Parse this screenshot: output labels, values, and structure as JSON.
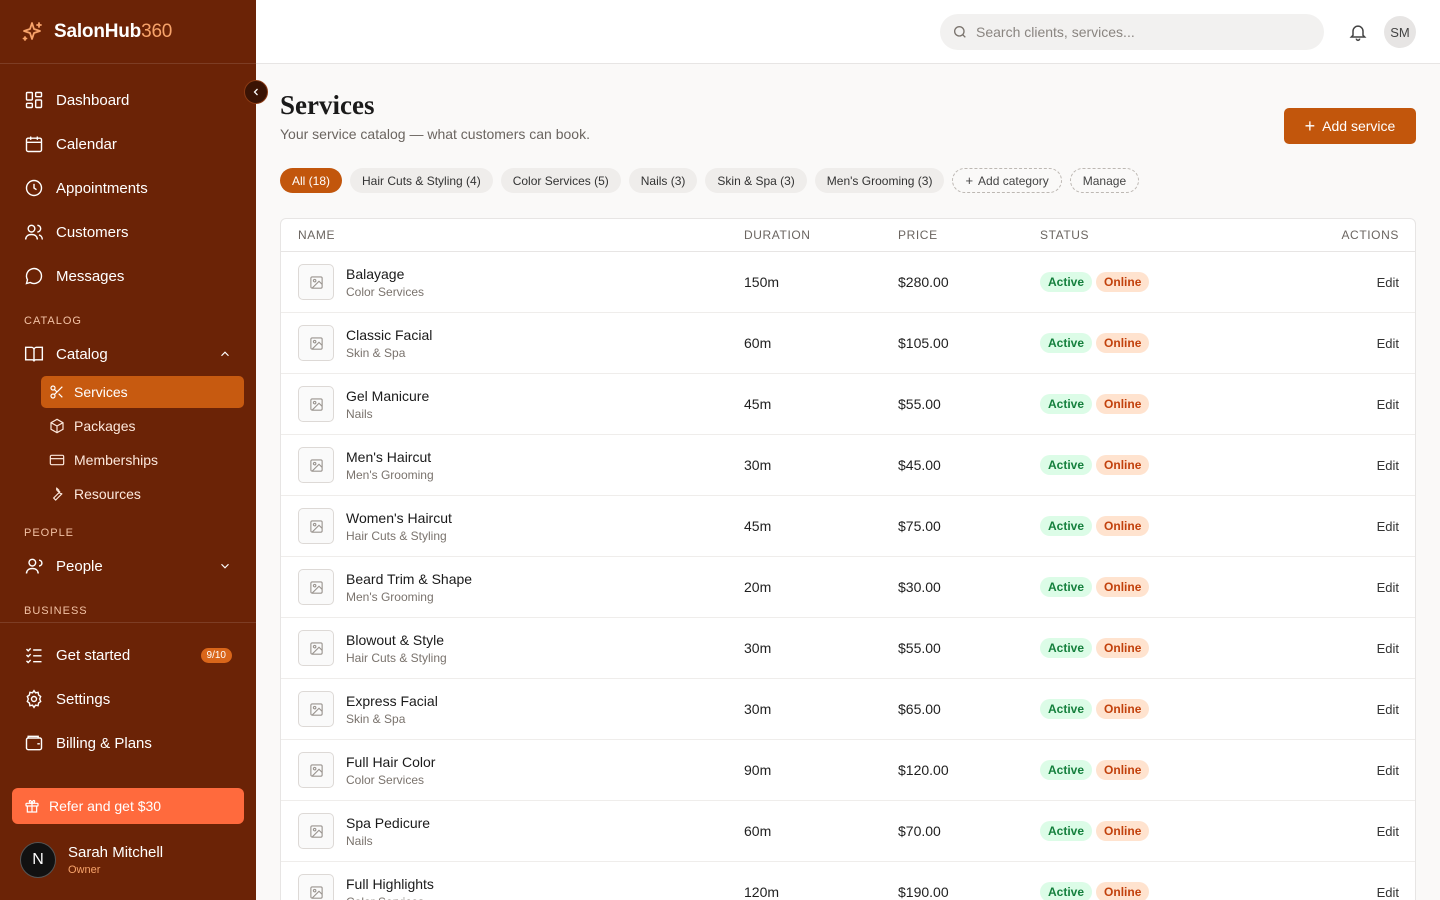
{
  "brand": {
    "name_main": "SalonHub",
    "name_accent": "360"
  },
  "nav": {
    "dashboard": "Dashboard",
    "calendar": "Calendar",
    "appointments": "Appointments",
    "customers": "Customers",
    "messages": "Messages",
    "catalog_section": "CATALOG",
    "catalog": "Catalog",
    "services": "Services",
    "packages": "Packages",
    "memberships": "Memberships",
    "resources": "Resources",
    "people_section": "PEOPLE",
    "people": "People",
    "business_section": "BUSINESS",
    "get_started": "Get started",
    "get_started_badge": "9/10",
    "settings": "Settings",
    "billing": "Billing & Plans",
    "refer": "Refer and get $30"
  },
  "user": {
    "initial": "N",
    "name": "Sarah Mitchell",
    "role": "Owner"
  },
  "topbar": {
    "search_placeholder": "Search clients, services...",
    "avatar_initials": "SM"
  },
  "page": {
    "title": "Services",
    "subtitle": "Your service catalog — what customers can book.",
    "add_button": "Add service"
  },
  "chips": {
    "all": "All (18)",
    "hair": "Hair Cuts & Styling (4)",
    "color": "Color Services (5)",
    "nails": "Nails (3)",
    "skin": "Skin & Spa (3)",
    "mens": "Men's Grooming (3)",
    "add_category": "Add category",
    "manage": "Manage"
  },
  "table": {
    "headers": {
      "name": "NAME",
      "duration": "DURATION",
      "price": "PRICE",
      "status": "STATUS",
      "actions": "ACTIONS"
    },
    "rows": [
      {
        "name": "Balayage",
        "category": "Color Services",
        "duration": "150m",
        "price": "$280.00",
        "status": "Active",
        "channel": "Online",
        "action": "Edit"
      },
      {
        "name": "Classic Facial",
        "category": "Skin & Spa",
        "duration": "60m",
        "price": "$105.00",
        "status": "Active",
        "channel": "Online",
        "action": "Edit"
      },
      {
        "name": "Gel Manicure",
        "category": "Nails",
        "duration": "45m",
        "price": "$55.00",
        "status": "Active",
        "channel": "Online",
        "action": "Edit"
      },
      {
        "name": "Men's Haircut",
        "category": "Men's Grooming",
        "duration": "30m",
        "price": "$45.00",
        "status": "Active",
        "channel": "Online",
        "action": "Edit"
      },
      {
        "name": "Women's Haircut",
        "category": "Hair Cuts & Styling",
        "duration": "45m",
        "price": "$75.00",
        "status": "Active",
        "channel": "Online",
        "action": "Edit"
      },
      {
        "name": "Beard Trim & Shape",
        "category": "Men's Grooming",
        "duration": "20m",
        "price": "$30.00",
        "status": "Active",
        "channel": "Online",
        "action": "Edit"
      },
      {
        "name": "Blowout & Style",
        "category": "Hair Cuts & Styling",
        "duration": "30m",
        "price": "$55.00",
        "status": "Active",
        "channel": "Online",
        "action": "Edit"
      },
      {
        "name": "Express Facial",
        "category": "Skin & Spa",
        "duration": "30m",
        "price": "$65.00",
        "status": "Active",
        "channel": "Online",
        "action": "Edit"
      },
      {
        "name": "Full Hair Color",
        "category": "Color Services",
        "duration": "90m",
        "price": "$120.00",
        "status": "Active",
        "channel": "Online",
        "action": "Edit"
      },
      {
        "name": "Spa Pedicure",
        "category": "Nails",
        "duration": "60m",
        "price": "$70.00",
        "status": "Active",
        "channel": "Online",
        "action": "Edit"
      },
      {
        "name": "Full Highlights",
        "category": "Color Services",
        "duration": "120m",
        "price": "$190.00",
        "status": "Active",
        "channel": "Online",
        "action": "Edit"
      }
    ]
  },
  "colors": {
    "sidebar": "#6b2306",
    "accent": "#c2560c",
    "refer": "#ff6a3d"
  }
}
